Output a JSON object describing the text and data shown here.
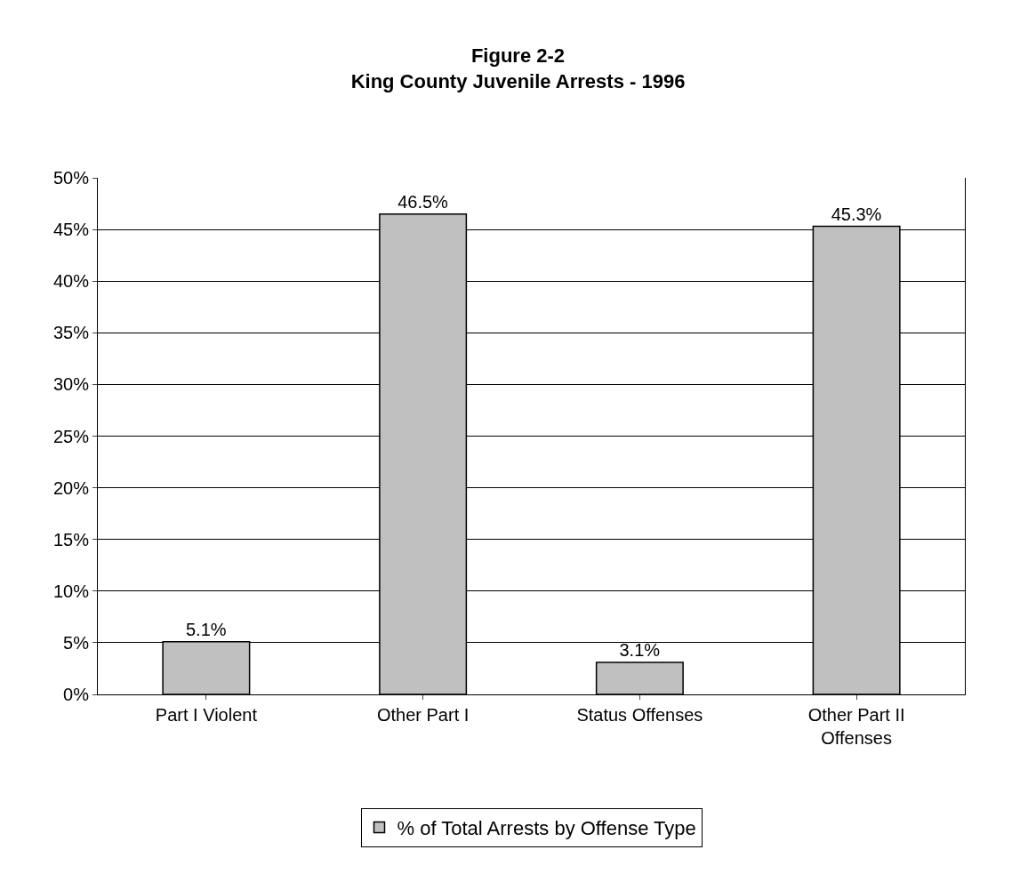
{
  "chart_data": {
    "type": "bar",
    "title": "Figure 2-2",
    "subtitle": "King County Juvenile Arrests - 1996",
    "categories": [
      "Part I Violent",
      "Other Part I",
      "Status Offenses",
      "Other Part II Offenses"
    ],
    "series": [
      {
        "name": "% of Total Arrests by Offense Type",
        "color": "#c0c0c0",
        "values": [
          5.1,
          46.5,
          3.1,
          45.3
        ],
        "value_labels": [
          "5.1%",
          "46.5%",
          "3.1%",
          "45.3%"
        ]
      }
    ],
    "ylim": [
      0,
      50
    ],
    "yticks": [
      {
        "value": 0,
        "label": "0%"
      },
      {
        "value": 5,
        "label": "5%"
      },
      {
        "value": 10,
        "label": "10%"
      },
      {
        "value": 15,
        "label": "15%"
      },
      {
        "value": 20,
        "label": "20%"
      },
      {
        "value": 25,
        "label": "25%"
      },
      {
        "value": 30,
        "label": "30%"
      },
      {
        "value": 35,
        "label": "35%"
      },
      {
        "value": 40,
        "label": "40%"
      },
      {
        "value": 45,
        "label": "45%"
      },
      {
        "value": 50,
        "label": "50%"
      }
    ],
    "grid": "y",
    "legend": "bottom"
  }
}
